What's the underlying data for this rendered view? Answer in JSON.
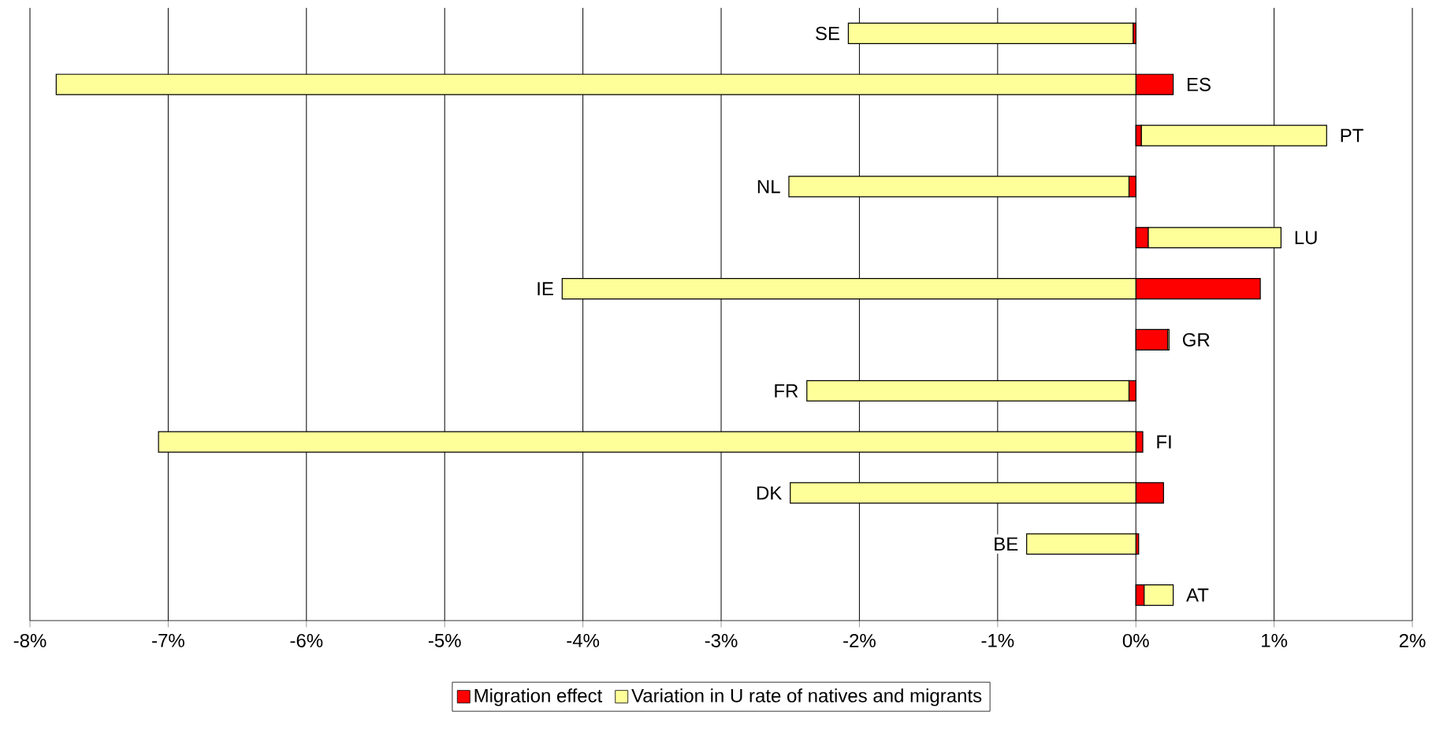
{
  "chart_data": {
    "type": "bar",
    "orientation": "horizontal",
    "stacked": true,
    "categories": [
      "SE",
      "ES",
      "PT",
      "NL",
      "LU",
      "IE",
      "GR",
      "FR",
      "FI",
      "DK",
      "BE",
      "AT"
    ],
    "series": [
      {
        "name": "Migration effect",
        "color": "#ff0000",
        "values": [
          -0.02,
          0.27,
          0.04,
          -0.05,
          0.09,
          0.9,
          0.23,
          -0.05,
          0.05,
          0.2,
          0.02,
          0.06
        ]
      },
      {
        "name": "Variation in U rate of natives and migrants",
        "color": "#ffff99",
        "values": [
          -2.06,
          -7.81,
          1.34,
          -2.46,
          0.96,
          -4.15,
          0.01,
          -2.33,
          -7.07,
          -2.5,
          -0.79,
          0.21
        ]
      }
    ],
    "xlim": [
      -8,
      2
    ],
    "xticks": [
      {
        "value": -8,
        "label": "-8%"
      },
      {
        "value": -7,
        "label": "-7%"
      },
      {
        "value": -6,
        "label": "-6%"
      },
      {
        "value": -5,
        "label": "-5%"
      },
      {
        "value": -4,
        "label": "-4%"
      },
      {
        "value": -3,
        "label": "-3%"
      },
      {
        "value": -2,
        "label": "-2%"
      },
      {
        "value": -1,
        "label": "-1%"
      },
      {
        "value": 0,
        "label": "0%"
      },
      {
        "value": 1,
        "label": "1%"
      },
      {
        "value": 2,
        "label": "2%"
      }
    ],
    "grid": "x",
    "legend": "bottom",
    "tick_labels": "x"
  }
}
